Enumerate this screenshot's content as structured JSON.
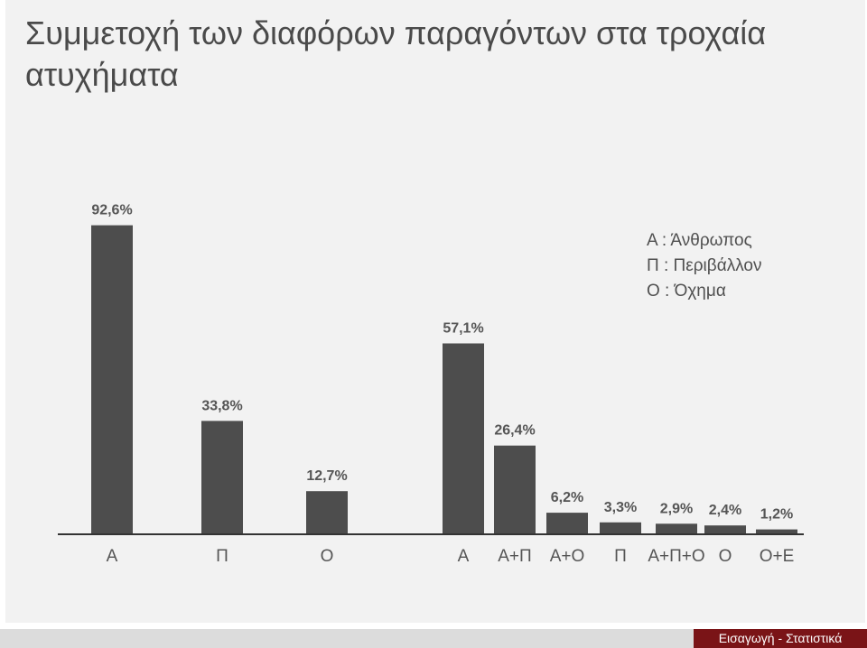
{
  "title": "Συμμετοχή των διαφόρων παραγόντων στα τροχαία ατυχήματα",
  "legend": {
    "items": [
      "Α : Άνθρωπος",
      "Π : Περιβάλλον",
      "Ο : Όχημα"
    ]
  },
  "footer": {
    "label": "Εισαγωγή - Στατιστικά"
  },
  "colors": {
    "bar": "#4d4d4d",
    "background": "#f2f2f2",
    "footer_accent": "#7a1417",
    "footer_strip": "#dcdcdc"
  },
  "chart_data": [
    {
      "type": "bar",
      "categories": [
        "Α",
        "Π",
        "Ο"
      ],
      "values": [
        92.6,
        33.8,
        12.7
      ],
      "value_labels": [
        "92,6%",
        "33,8%",
        "12,7%"
      ],
      "unit": "%",
      "ylim": [
        0,
        100
      ],
      "grid": false
    },
    {
      "type": "bar",
      "categories": [
        "Α",
        "Α+Π",
        "Α+Ο",
        "Π",
        "Α+Π+Ο",
        "Ο",
        "Ο+Ε"
      ],
      "values": [
        57.1,
        26.4,
        6.2,
        3.3,
        2.9,
        2.4,
        1.2
      ],
      "value_labels": [
        "57,1%",
        "26,4%",
        "6,2%",
        "3,3%",
        "2,9%",
        "2,4%",
        "1,2%"
      ],
      "unit": "%",
      "ylim": [
        0,
        100
      ],
      "grid": false,
      "legend_position": "top-right"
    }
  ]
}
